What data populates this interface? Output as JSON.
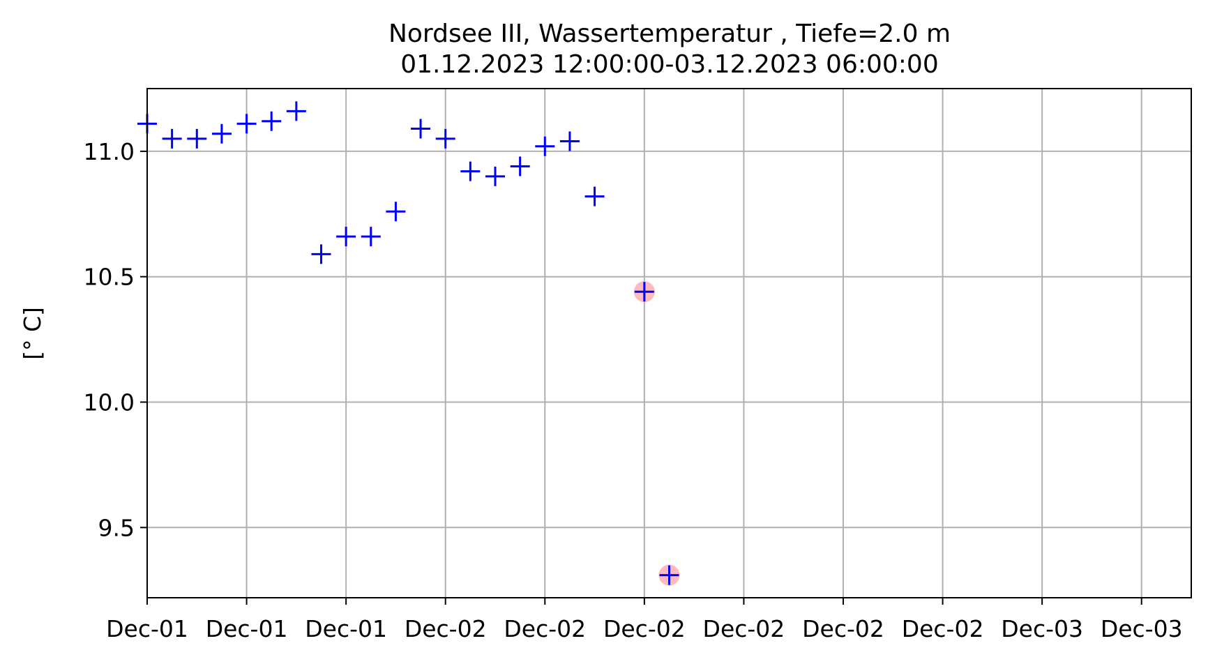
{
  "chart_data": {
    "type": "scatter",
    "title_line1": "Nordsee III, Wassertemperatur , Tiefe=2.0 m",
    "title_line2": "01.12.2023 12:00:00-03.12.2023 06:00:00",
    "xlabel": "",
    "ylabel": "[° C]",
    "grid": true,
    "ylim": [
      9.22,
      11.25
    ],
    "xlim": [
      "2023-12-01 12:00",
      "2023-12-03 06:00"
    ],
    "yticks": [
      9.5,
      10.0,
      10.5,
      11.0
    ],
    "ytick_labels": [
      "9.5",
      "10.0",
      "10.5",
      "11.0"
    ],
    "xticks": [
      "2023-12-01 12:00",
      "2023-12-01 16:00",
      "2023-12-01 20:00",
      "2023-12-02 00:00",
      "2023-12-02 04:00",
      "2023-12-02 08:00",
      "2023-12-02 12:00",
      "2023-12-02 16:00",
      "2023-12-02 20:00",
      "2023-12-03 00:00",
      "2023-12-03 04:00"
    ],
    "xtick_labels": [
      "Dec-01",
      "Dec-01",
      "Dec-01",
      "Dec-02",
      "Dec-02",
      "Dec-02",
      "Dec-02",
      "Dec-02",
      "Dec-02",
      "Dec-03",
      "Dec-03"
    ],
    "colors": {
      "marker": "#0000ff",
      "flag": "#ffaaaa",
      "grid": "#b0b0b0"
    },
    "points": [
      {
        "x": "2023-12-01 12:00",
        "y": 11.11,
        "flagged": false
      },
      {
        "x": "2023-12-01 13:00",
        "y": 11.05,
        "flagged": false
      },
      {
        "x": "2023-12-01 14:00",
        "y": 11.05,
        "flagged": false
      },
      {
        "x": "2023-12-01 15:00",
        "y": 11.07,
        "flagged": false
      },
      {
        "x": "2023-12-01 16:00",
        "y": 11.11,
        "flagged": false
      },
      {
        "x": "2023-12-01 17:00",
        "y": 11.12,
        "flagged": false
      },
      {
        "x": "2023-12-01 18:00",
        "y": 11.16,
        "flagged": false
      },
      {
        "x": "2023-12-01 19:00",
        "y": 10.59,
        "flagged": false
      },
      {
        "x": "2023-12-01 20:00",
        "y": 10.66,
        "flagged": false
      },
      {
        "x": "2023-12-01 21:00",
        "y": 10.66,
        "flagged": false
      },
      {
        "x": "2023-12-01 22:00",
        "y": 10.76,
        "flagged": false
      },
      {
        "x": "2023-12-01 23:00",
        "y": 11.09,
        "flagged": false
      },
      {
        "x": "2023-12-02 00:00",
        "y": 11.05,
        "flagged": false
      },
      {
        "x": "2023-12-02 01:00",
        "y": 10.92,
        "flagged": false
      },
      {
        "x": "2023-12-02 02:00",
        "y": 10.9,
        "flagged": false
      },
      {
        "x": "2023-12-02 03:00",
        "y": 10.94,
        "flagged": false
      },
      {
        "x": "2023-12-02 04:00",
        "y": 11.02,
        "flagged": false
      },
      {
        "x": "2023-12-02 05:00",
        "y": 11.04,
        "flagged": false
      },
      {
        "x": "2023-12-02 06:00",
        "y": 10.82,
        "flagged": false
      },
      {
        "x": "2023-12-02 08:00",
        "y": 10.44,
        "flagged": true
      },
      {
        "x": "2023-12-02 09:00",
        "y": 9.31,
        "flagged": true
      }
    ]
  }
}
